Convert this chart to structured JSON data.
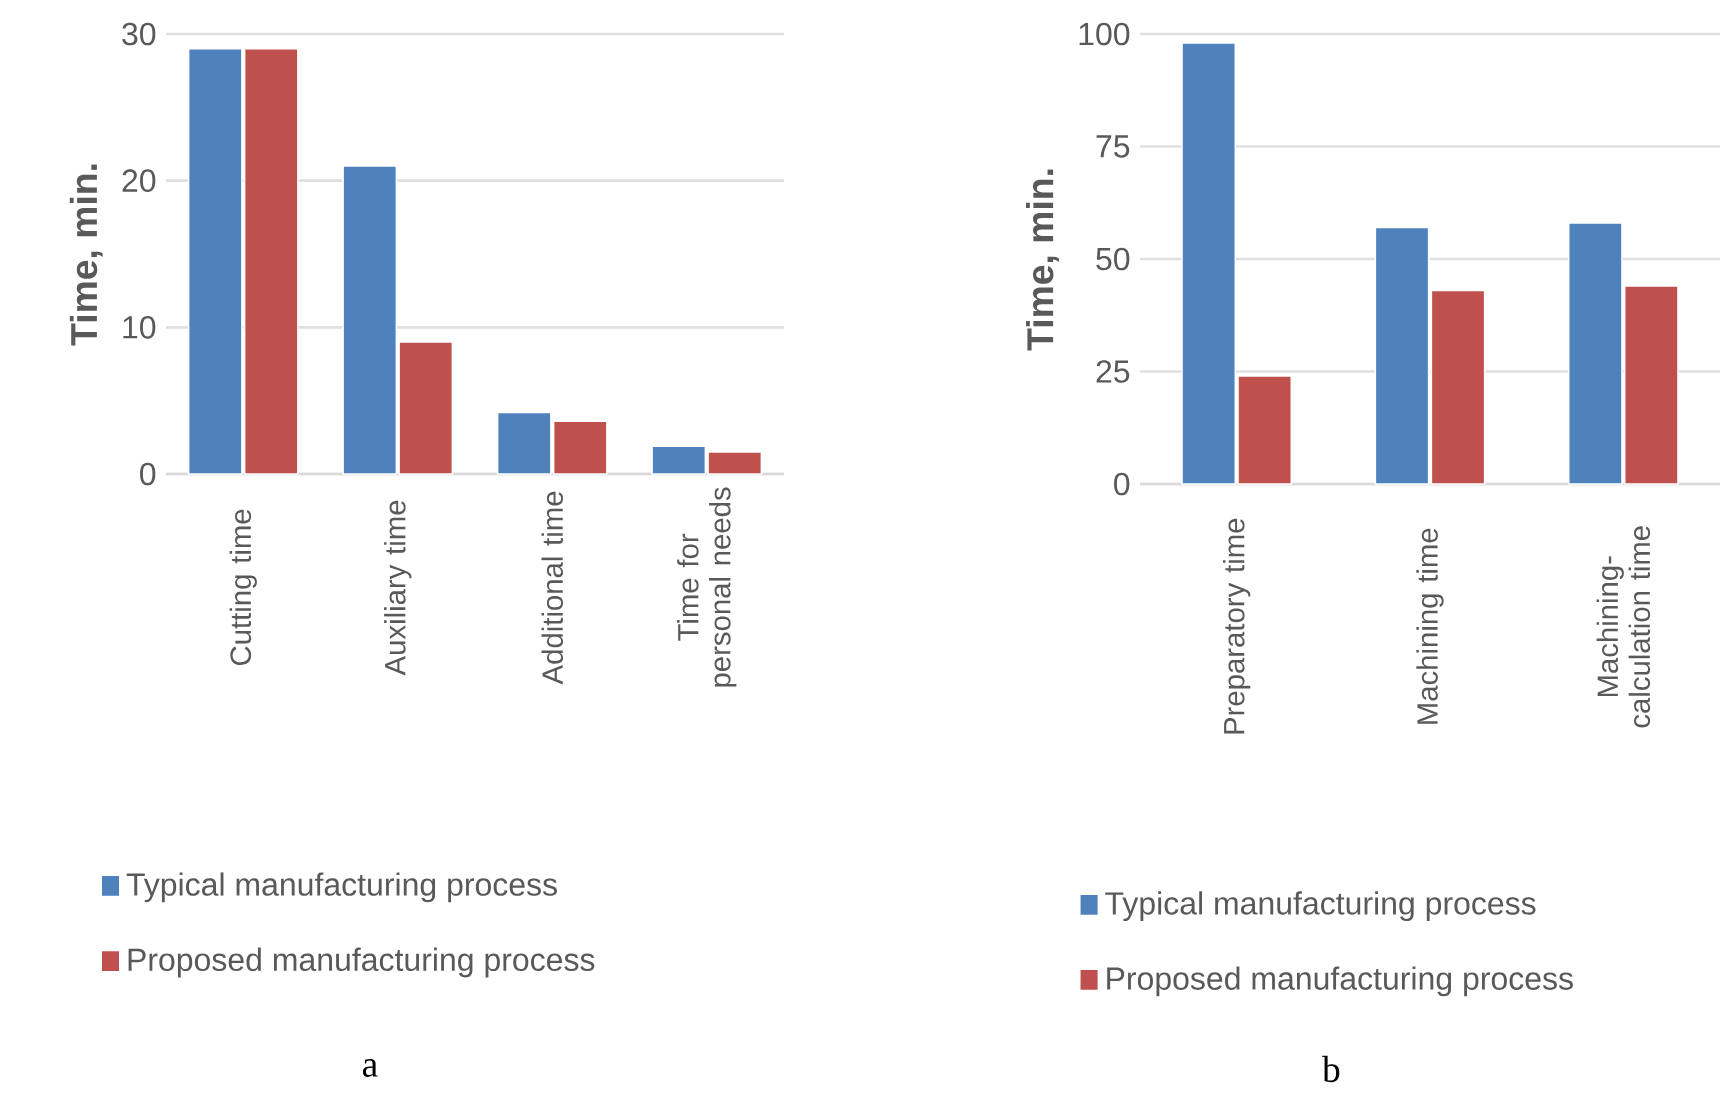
{
  "chart_data": [
    {
      "type": "bar",
      "categories": [
        "Cutting time",
        "Auxiliary time",
        "Additional time",
        "Time for personal needs"
      ],
      "series": [
        {
          "name": "Typical manufacturing process",
          "color": "#4f81bd",
          "values": [
            29.0,
            21.0,
            4.2,
            1.9
          ]
        },
        {
          "name": "Proposed manufacturing process",
          "color": "#c0504d",
          "values": [
            29.0,
            9.0,
            3.6,
            1.5
          ]
        }
      ],
      "ylabel": "Time, min.",
      "ylim": [
        0,
        30
      ],
      "yticks": [
        0,
        10,
        20,
        30
      ],
      "grid": "y",
      "legend": "bottom",
      "annotations": [
        "a"
      ]
    },
    {
      "type": "bar",
      "categories": [
        "Preparatory time",
        "Machining time",
        "Machining-calculation time"
      ],
      "series": [
        {
          "name": "Typical manufacturing process",
          "color": "#4f81bd",
          "values": [
            98,
            57,
            58
          ]
        },
        {
          "name": "Proposed manufacturing process",
          "color": "#c0504d",
          "values": [
            24,
            43,
            44
          ]
        }
      ],
      "ylabel": "Time, min.",
      "ylim": [
        0,
        100
      ],
      "yticks": [
        0,
        25,
        50,
        75,
        100
      ],
      "grid": "y",
      "legend": "bottom",
      "annotations": [
        "b"
      ]
    }
  ]
}
